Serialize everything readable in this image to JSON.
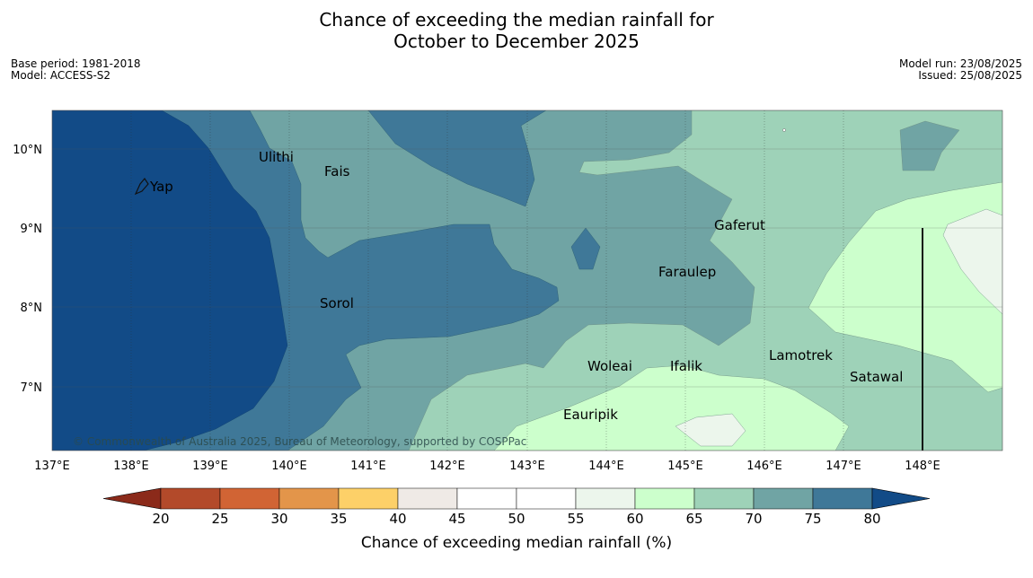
{
  "header": {
    "title_line1": "Chance of exceeding the median rainfall for",
    "title_line2": "October to December 2025",
    "base_period": "Base period: 1981-2018",
    "model": "Model: ACCESS-S2",
    "model_run": "Model run: 23/08/2025",
    "issued": "Issued: 25/08/2025"
  },
  "map": {
    "longitude_labels": [
      "137°E",
      "138°E",
      "139°E",
      "140°E",
      "141°E",
      "142°E",
      "143°E",
      "144°E",
      "145°E",
      "146°E",
      "147°E",
      "148°E"
    ],
    "latitude_labels": [
      "10°N",
      "9°N",
      "8°N",
      "7°N"
    ],
    "places": [
      {
        "name": "Yap"
      },
      {
        "name": "Ulithi"
      },
      {
        "name": "Fais"
      },
      {
        "name": "Gaferut"
      },
      {
        "name": "Faraulep"
      },
      {
        "name": "Sorol"
      },
      {
        "name": "Lamotrek"
      },
      {
        "name": "Woleai"
      },
      {
        "name": "Ifalik"
      },
      {
        "name": "Satawal"
      },
      {
        "name": "Eauripik"
      }
    ],
    "copyright": "© Commonwealth of Australia 2025, Bureau of Meteorology, supported by COSPPac"
  },
  "legend": {
    "title": "Chance of exceeding median rainfall (%)",
    "ticks": [
      "20",
      "25",
      "30",
      "35",
      "40",
      "45",
      "50",
      "55",
      "60",
      "65",
      "70",
      "75",
      "80"
    ],
    "colors": [
      "#8b2a1a",
      "#b34a2a",
      "#d16434",
      "#e3954a",
      "#fdd068",
      "#efeae6",
      "#ffffff",
      "#ffffff",
      "#ecf6ec",
      "#ccffcc",
      "#9ed2b8",
      "#70a4a4",
      "#3f7898",
      "#124b87"
    ]
  }
}
